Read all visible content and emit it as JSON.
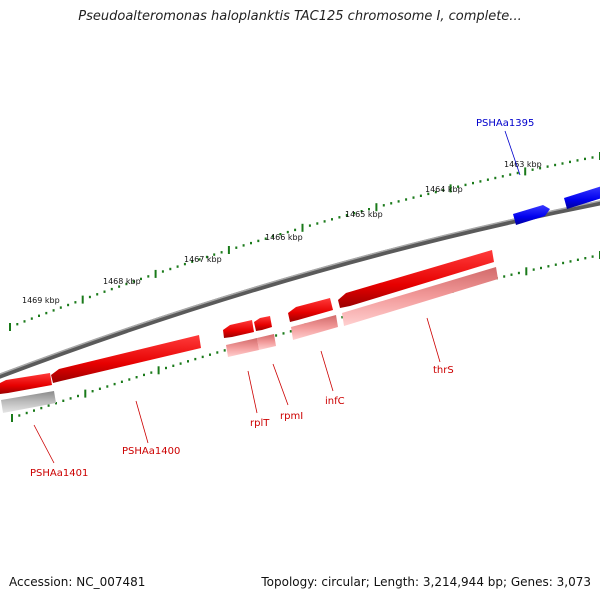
{
  "title": "Pseudoalteromonas haloplanktis TAC125 chromosome I, complete...",
  "footer": {
    "accession": "Accession: NC_007481",
    "topology": "Topology: circular; Length: 3,214,944 bp; Genes: 3,073"
  },
  "colors": {
    "reverse_gene": "#ff0000",
    "reverse_gene_light": "#f08c8c",
    "forward_gene": "#0000ff",
    "label_reverse": "#cc0000",
    "label_forward": "#0000cc",
    "backbone": "#808080",
    "tick": "#1a7a1a"
  },
  "kbp_labels": [
    "1463 kbp",
    "1464 kbp",
    "1465 kbp",
    "1466 kbp",
    "1467 kbp",
    "1468 kbp",
    "1469 kbp"
  ],
  "genes": [
    {
      "name": "PSHAa1395",
      "strand": "forward"
    },
    {
      "name": "thrS",
      "strand": "reverse"
    },
    {
      "name": "infC",
      "strand": "reverse"
    },
    {
      "name": "rpmI",
      "strand": "reverse"
    },
    {
      "name": "rplT",
      "strand": "reverse"
    },
    {
      "name": "PSHAa1400",
      "strand": "reverse"
    },
    {
      "name": "PSHAa1401",
      "strand": "reverse"
    }
  ]
}
